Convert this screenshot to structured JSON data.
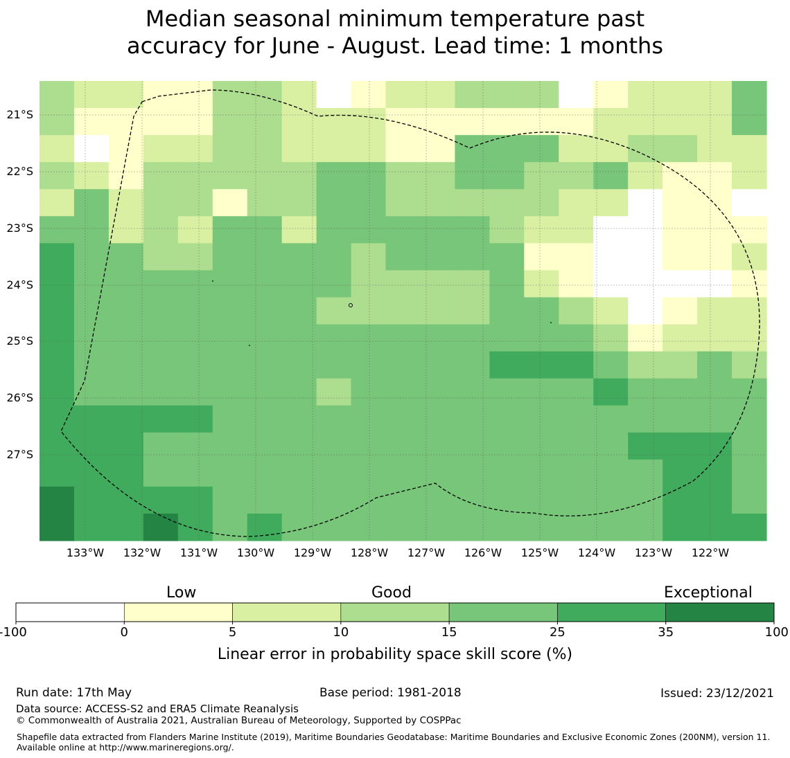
{
  "title": {
    "line1": "Median seasonal minimum temperature past",
    "line2": "accuracy for June - August. Lead time: 1 months"
  },
  "map": {
    "lat_labels": [
      "21°S",
      "22°S",
      "23°S",
      "24°S",
      "25°S",
      "26°S",
      "27°S"
    ],
    "lon_labels": [
      "133°W",
      "132°W",
      "131°W",
      "130°W",
      "129°W",
      "128°W",
      "127°W",
      "126°W",
      "125°W",
      "124°W",
      "123°W",
      "122°W"
    ],
    "boundary_color": "#000000",
    "grid": [
      [
        3,
        2,
        2,
        1,
        1,
        3,
        3,
        2,
        0,
        1,
        2,
        2,
        3,
        3,
        3,
        0,
        1,
        2,
        2,
        2,
        4
      ],
      [
        3,
        1,
        1,
        1,
        1,
        3,
        3,
        2,
        2,
        2,
        1,
        1,
        1,
        1,
        1,
        1,
        2,
        2,
        2,
        2,
        4
      ],
      [
        2,
        0,
        1,
        2,
        2,
        3,
        3,
        2,
        2,
        2,
        1,
        1,
        4,
        4,
        4,
        2,
        2,
        3,
        3,
        2,
        2
      ],
      [
        3,
        2,
        1,
        3,
        3,
        3,
        3,
        3,
        4,
        4,
        3,
        3,
        4,
        4,
        3,
        3,
        4,
        2,
        1,
        1,
        2
      ],
      [
        2,
        4,
        2,
        3,
        3,
        1,
        3,
        3,
        4,
        4,
        3,
        3,
        3,
        3,
        3,
        2,
        2,
        0,
        1,
        1,
        0
      ],
      [
        4,
        4,
        2,
        3,
        2,
        4,
        4,
        2,
        4,
        4,
        4,
        4,
        4,
        3,
        2,
        2,
        0,
        0,
        1,
        1,
        1
      ],
      [
        5,
        4,
        4,
        3,
        3,
        4,
        4,
        4,
        4,
        3,
        4,
        4,
        4,
        4,
        1,
        1,
        0,
        0,
        1,
        1,
        2
      ],
      [
        5,
        4,
        4,
        4,
        4,
        4,
        4,
        4,
        4,
        3,
        3,
        3,
        3,
        4,
        2,
        1,
        0,
        0,
        0,
        0,
        1
      ],
      [
        5,
        4,
        4,
        4,
        4,
        4,
        4,
        4,
        3,
        3,
        3,
        3,
        3,
        4,
        4,
        3,
        2,
        0,
        1,
        2,
        2
      ],
      [
        5,
        4,
        4,
        4,
        4,
        4,
        4,
        4,
        4,
        4,
        4,
        4,
        4,
        4,
        4,
        4,
        3,
        1,
        2,
        2,
        2
      ],
      [
        5,
        4,
        4,
        4,
        4,
        4,
        4,
        4,
        4,
        4,
        4,
        4,
        4,
        5,
        5,
        5,
        4,
        3,
        3,
        4,
        3
      ],
      [
        5,
        4,
        4,
        4,
        4,
        4,
        4,
        4,
        3,
        4,
        4,
        4,
        4,
        4,
        4,
        4,
        5,
        4,
        4,
        4,
        4
      ],
      [
        5,
        5,
        5,
        5,
        5,
        4,
        4,
        4,
        4,
        4,
        4,
        4,
        4,
        4,
        4,
        4,
        4,
        4,
        4,
        4,
        4
      ],
      [
        5,
        5,
        5,
        4,
        4,
        4,
        4,
        4,
        4,
        4,
        4,
        4,
        4,
        4,
        4,
        4,
        4,
        5,
        5,
        5,
        4
      ],
      [
        5,
        5,
        5,
        4,
        4,
        4,
        4,
        4,
        4,
        4,
        4,
        4,
        4,
        4,
        4,
        4,
        4,
        4,
        5,
        5,
        4
      ],
      [
        6,
        5,
        5,
        5,
        5,
        4,
        4,
        4,
        4,
        4,
        4,
        4,
        4,
        4,
        4,
        4,
        4,
        4,
        5,
        5,
        4
      ],
      [
        6,
        5,
        5,
        6,
        5,
        4,
        5,
        4,
        4,
        4,
        4,
        4,
        4,
        4,
        4,
        4,
        4,
        4,
        5,
        5,
        5
      ]
    ]
  },
  "colorbar": {
    "title": "Linear error in probability space skill score (%)",
    "category_labels": [
      "Low",
      "Good",
      "Exceptional"
    ],
    "ticks": [
      "-100",
      "0",
      "5",
      "10",
      "15",
      "25",
      "35",
      "100"
    ],
    "colors": [
      "#ffffff",
      "#ffffcc",
      "#d9f0a3",
      "#addd8e",
      "#78c679",
      "#41ab5d",
      "#238443"
    ]
  },
  "footer": {
    "run_date": "Run date: 17th May",
    "base_period": "Base period: 1981-2018",
    "issued": "Issued: 23/12/2021",
    "data_source": "Data source: ACCESS-S2 and ERA5 Climate Reanalysis",
    "copyright": "© Commonwealth of Australia 2021, Australian Bureau of Meteorology, Supported by COSPPac",
    "shapefile": "Shapefile data extracted from Flanders Marine Institute (2019), Maritime Boundaries Geodatabase: Maritime Boundaries and Exclusive Economic Zones (200NM), version 11. Available online at http://www.marineregions.org/."
  }
}
